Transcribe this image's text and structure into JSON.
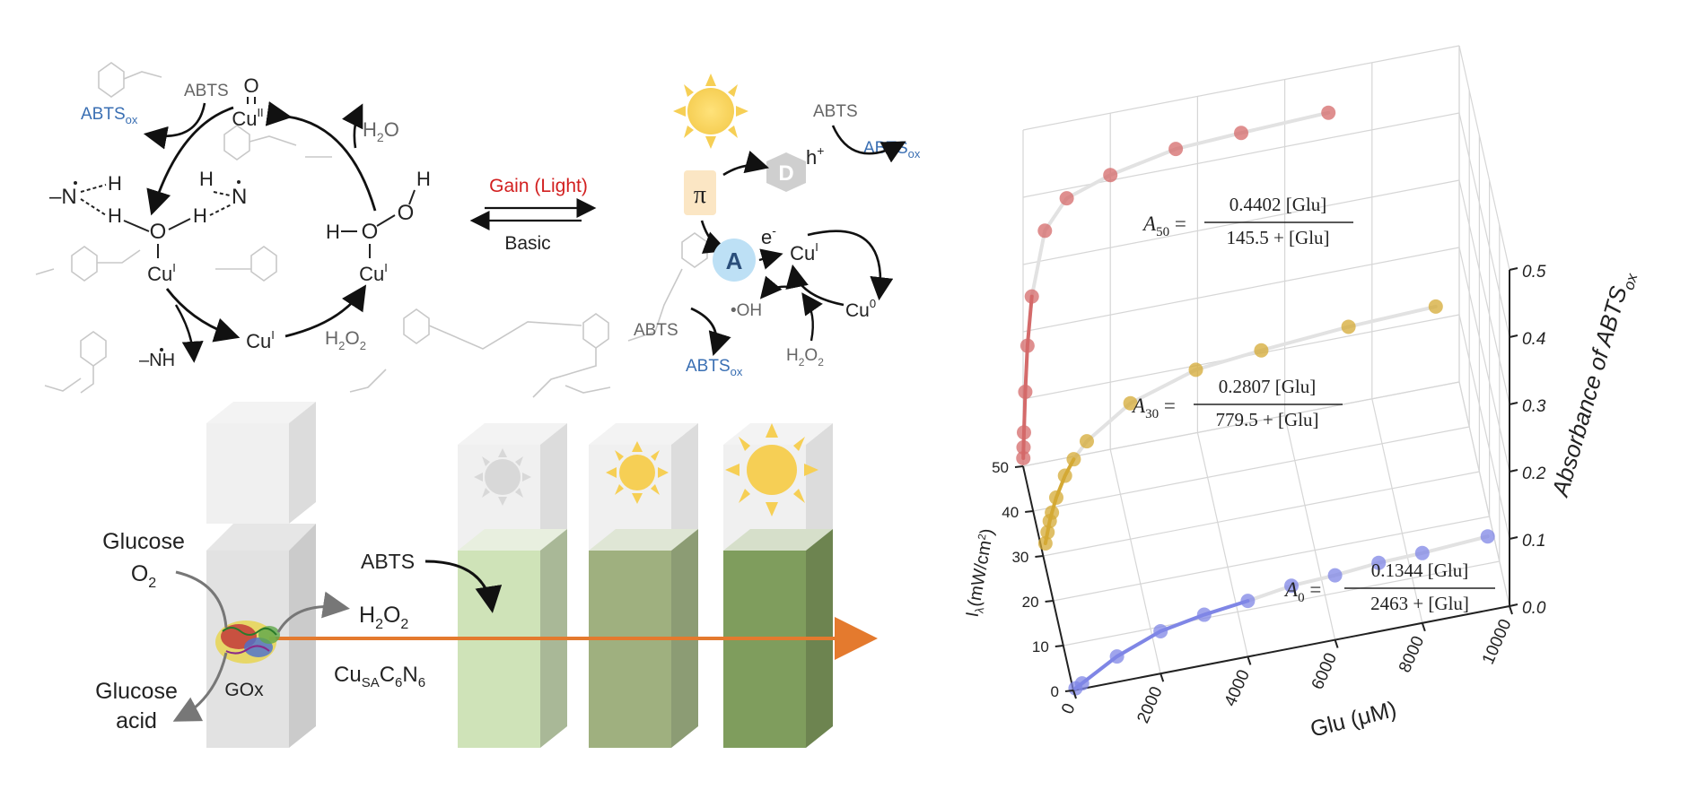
{
  "scheme": {
    "abts_top_left": "ABTS",
    "abtsox_top_left_base": "ABTS",
    "ox": "ox",
    "cu_ii": "Cu",
    "cu_ii_sup": "II",
    "o_label": "O",
    "h2o_base": "H",
    "h2o_tail": "O",
    "two": "2",
    "n_label": "N",
    "h_label": "H",
    "o_upper": "O",
    "cu_i_left": "Cu",
    "cu_i_right": "Cu",
    "sup_i": "I",
    "cu_i_bottom": "Cu",
    "h2o2_base": "H",
    "nh_label": "NH",
    "gain_light": "Gain (Light)",
    "basic": "Basic",
    "abts_right": "ABTS",
    "h_plus": "h",
    "plus": "+",
    "abtsox_right_base": "ABTS",
    "pi": "π",
    "d_label": "D",
    "a_label": "A",
    "e_minus": "e",
    "minus": "-",
    "cu_i_right_cycle": "Cu",
    "oh_radical": "•OH",
    "abts_mid": "ABTS",
    "cu0": "Cu",
    "cu0_sup": "0",
    "abtsox_bottom_base": "ABTS",
    "h2o2_right_base": "H"
  },
  "cuvettes": {
    "glucose": "Glucose",
    "o2_base": "O",
    "glucose_acid_l1": "Glucose",
    "glucose_acid_l2": "acid",
    "gox": "GOx",
    "abts": "ABTS",
    "h2o2_base": "H",
    "catalyst_cu": "Cu",
    "catalyst_sa": "SA",
    "catalyst_tail": "C",
    "six": "6",
    "catalyst_n": "N"
  },
  "chart_data": {
    "type": "scatter",
    "xlabel": "Glu (μM)",
    "ylabel": "I",
    "ylabel_sub": "λ",
    "ylabel_unit": "(mW/cm",
    "ylabel_unit_sup": "2",
    "ylabel_close": ")",
    "zlabel": "Absorbance of ABTS",
    "zlabel_sub": "ox",
    "x_ticks": [
      "0",
      "2000",
      "4000",
      "6000",
      "8000",
      "10000"
    ],
    "y_ticks": [
      "0",
      "10",
      "20",
      "30",
      "40",
      "50"
    ],
    "z_ticks": [
      "0.0",
      "0.1",
      "0.2",
      "0.3",
      "0.4",
      "0.5"
    ],
    "series": [
      {
        "intensity": 0,
        "color": "#7f86e6",
        "equation": {
          "lhs": "A",
          "sub": "0",
          "num": "0.1344 [Glu]",
          "den": "2463 + [Glu]"
        },
        "x": [
          50,
          200,
          1000,
          2000,
          3000,
          4000,
          5000,
          6000,
          7000,
          8000,
          9500
        ],
        "z": [
          0.0025,
          0.008,
          0.038,
          0.063,
          0.075,
          0.083,
          0.093,
          0.096,
          0.102,
          0.104,
          0.11
        ]
      },
      {
        "intensity": 30,
        "color": "#d4a934",
        "equation": {
          "lhs": "A",
          "sub": "30",
          "num": "0.2807 [Glu]",
          "den": "779.5 + [Glu]"
        },
        "x": [
          50,
          100,
          150,
          200,
          300,
          500,
          700,
          1000,
          2000,
          3500,
          5000,
          7000,
          9000
        ],
        "z": [
          0.018,
          0.034,
          0.05,
          0.062,
          0.083,
          0.113,
          0.135,
          0.158,
          0.202,
          0.233,
          0.243,
          0.253,
          0.258
        ]
      },
      {
        "intensity": 50,
        "color": "#d46a6a",
        "equation": {
          "lhs": "A",
          "sub": "50",
          "num": "0.4402 [Glu]",
          "den": "145.5 + [Glu]"
        },
        "x": [
          5,
          10,
          20,
          50,
          100,
          200,
          500,
          1000,
          2000,
          3500,
          5000,
          7000
        ],
        "z": [
          0.012,
          0.028,
          0.05,
          0.11,
          0.178,
          0.25,
          0.344,
          0.386,
          0.408,
          0.428,
          0.433,
          0.438
        ]
      }
    ],
    "xlim": [
      0,
      10000
    ],
    "ylim": [
      0,
      50
    ],
    "zlim": [
      0,
      0.5
    ]
  }
}
